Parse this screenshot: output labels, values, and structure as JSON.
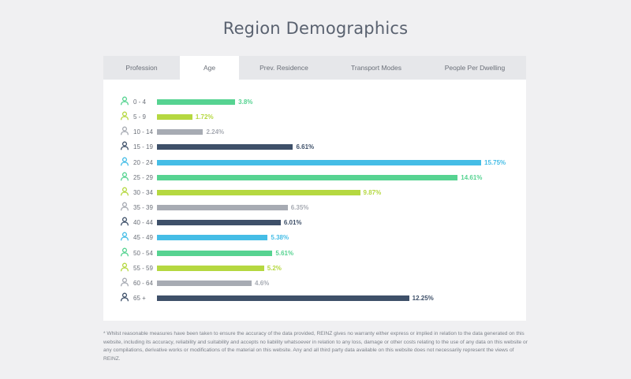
{
  "page": {
    "title": "Region Demographics"
  },
  "tabs": [
    {
      "label": "Profession",
      "active": false
    },
    {
      "label": "Age",
      "active": true
    },
    {
      "label": "Prev. Residence",
      "active": false
    },
    {
      "label": "Transport Modes",
      "active": false
    },
    {
      "label": "People Per Dwelling",
      "active": false
    }
  ],
  "colors": {
    "green": "#56d391",
    "lime": "#b5d840",
    "gray": "#a7abb3",
    "navy": "#3e5069",
    "blue": "#45bde6"
  },
  "chart_data": {
    "type": "bar",
    "orientation": "horizontal",
    "title": "",
    "xlabel": "",
    "ylabel": "",
    "xlim": [
      0,
      15.75
    ],
    "grid": false,
    "categories": [
      "0 - 4",
      "5 - 9",
      "10 - 14",
      "15 - 19",
      "20 - 24",
      "25 - 29",
      "30 - 34",
      "35 - 39",
      "40 - 44",
      "45 - 49",
      "50 - 54",
      "55 - 59",
      "60 - 64",
      "65 +"
    ],
    "values": [
      3.8,
      1.72,
      2.24,
      6.61,
      15.75,
      14.61,
      9.87,
      6.35,
      6.01,
      5.38,
      5.61,
      5.2,
      4.6,
      12.25
    ],
    "value_labels": [
      "3.8%",
      "1.72%",
      "2.24%",
      "6.61%",
      "15.75%",
      "14.61%",
      "9.87%",
      "6.35%",
      "6.01%",
      "5.38%",
      "5.61%",
      "5.2%",
      "4.6%",
      "12.25%"
    ],
    "bar_colors": [
      "green",
      "lime",
      "gray",
      "navy",
      "blue",
      "green",
      "lime",
      "gray",
      "navy",
      "blue",
      "green",
      "lime",
      "gray",
      "navy"
    ],
    "icon": "person-icon"
  },
  "disclaimer": "* Whilst reasonable measures have been taken to ensure the accuracy of the data provided, REINZ gives no warranty either express or implied in relation to the data generated on this website, including its accuracy, reliability and suitability and accepts no liability whatsoever in relation to any loss, damage or other costs relating to the use of any data on this website or any compilations, derivative works or modifications of the material on this website. Any and all third party data available on this website does not necessarily represent the views of REINZ."
}
